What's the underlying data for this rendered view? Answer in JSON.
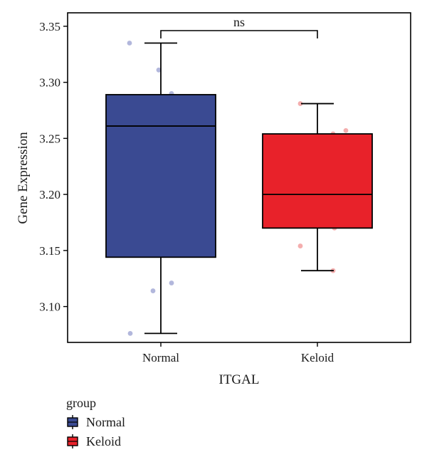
{
  "chart_data": {
    "type": "box",
    "xlabel": "ITGAL",
    "ylabel": "Gene Expression",
    "ylim": [
      3.068,
      3.362
    ],
    "yticks": [
      3.1,
      3.15,
      3.2,
      3.25,
      3.3,
      3.35
    ],
    "ytick_labels": [
      "3.10",
      "3.15",
      "3.20",
      "3.25",
      "3.30",
      "3.35"
    ],
    "categories": [
      "Normal",
      "Keloid"
    ],
    "grid": false,
    "legend": {
      "title": "group",
      "position": "bottom-left",
      "entries": [
        "Normal",
        "Keloid"
      ]
    },
    "series": [
      {
        "name": "Normal",
        "color": "#3a4a92",
        "point_color": "#a4aad6",
        "box": {
          "whisker_low": 3.076,
          "q1": 3.144,
          "median": 3.261,
          "q3": 3.289,
          "whisker_high": 3.335
        },
        "points": [
          3.335,
          3.311,
          3.29,
          3.121,
          3.114,
          3.076
        ]
      },
      {
        "name": "Keloid",
        "color": "#e8222a",
        "point_color": "#f2a0a0",
        "box": {
          "whisker_low": 3.132,
          "q1": 3.17,
          "median": 3.2,
          "q3": 3.254,
          "whisker_high": 3.281
        },
        "points": [
          3.281,
          3.257,
          3.254,
          3.2,
          3.17,
          3.154,
          3.132
        ]
      }
    ],
    "annotations": [
      {
        "type": "significance_bracket",
        "between": [
          "Normal",
          "Keloid"
        ],
        "label": "ns"
      }
    ]
  }
}
